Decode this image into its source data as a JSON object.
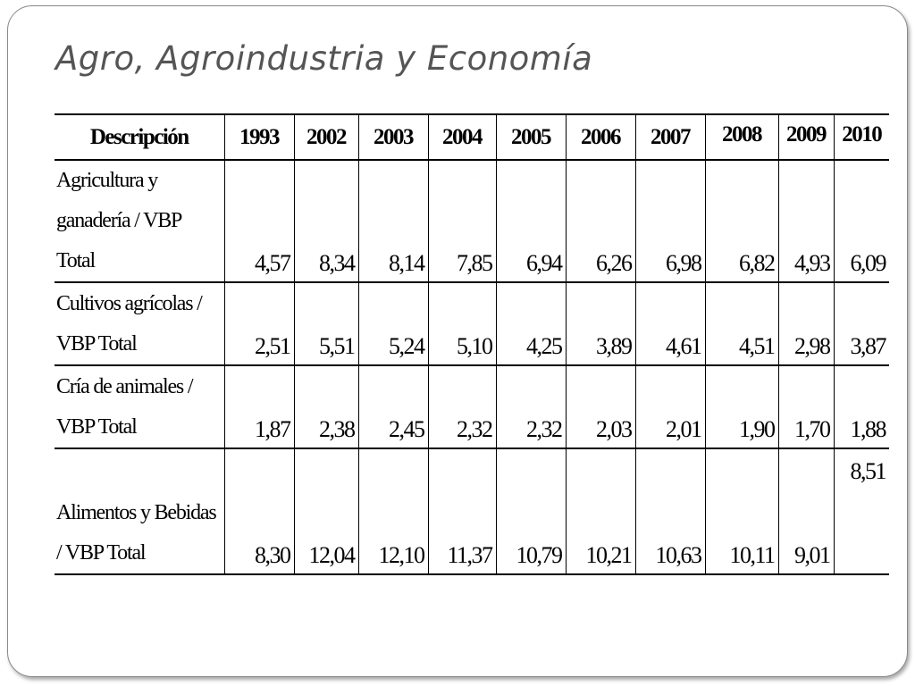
{
  "slide": {
    "title": "Agro, Agroindustria y Economía"
  },
  "table": {
    "header": {
      "description": "Descripción",
      "years": [
        "1993",
        "2002",
        "2003",
        "2004",
        "2005",
        "2006",
        "2007",
        "2008",
        "2009",
        "2010"
      ]
    },
    "rows": [
      {
        "description": "Agricultura y ganadería / VBP Total",
        "values": [
          "4,57",
          "8,34",
          "8,14",
          "7,85",
          "6,94",
          "6,26",
          "6,98",
          "6,82",
          "4,93",
          "6,09"
        ]
      },
      {
        "description": "Cultivos agrícolas / VBP Total",
        "values": [
          "2,51",
          "5,51",
          "5,24",
          "5,10",
          "4,25",
          "3,89",
          "4,61",
          "4,51",
          "2,98",
          "3,87"
        ]
      },
      {
        "description": "Cría de animales / VBP Total",
        "values": [
          "1,87",
          "2,38",
          "2,45",
          "2,32",
          "2,32",
          "2,03",
          "2,01",
          "1,90",
          "1,70",
          "1,88"
        ]
      },
      {
        "description": "Alimentos y Bebidas / VBP Total",
        "values": [
          "8,30",
          "12,04",
          "12,10",
          "11,37",
          "10,79",
          "10,21",
          "10,63",
          "10,11",
          "9,01",
          "8,51"
        ]
      }
    ]
  }
}
